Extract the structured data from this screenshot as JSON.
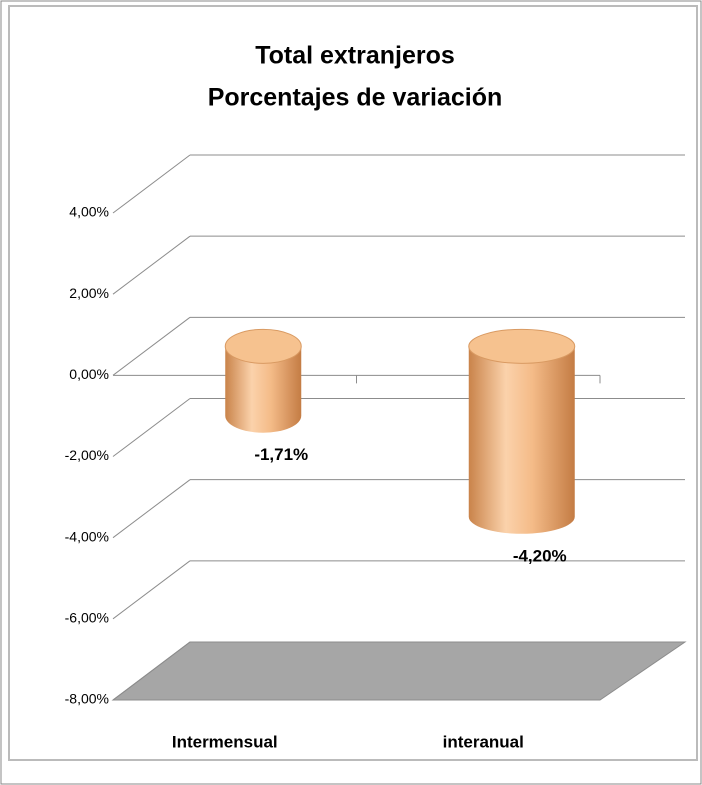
{
  "chart_data": {
    "type": "bar3d",
    "title": [
      "Total extranjeros",
      "Porcentajes de variación"
    ],
    "categories": [
      "Intermensual",
      "interanual"
    ],
    "values": [
      -1.71,
      -4.2
    ],
    "value_labels": [
      "-1,71%",
      "-4,20%"
    ],
    "color": "#f2b27a",
    "ylim": [
      -8,
      4
    ],
    "yticks": [
      {
        "value": -8,
        "label": "-8,00%"
      },
      {
        "value": -6,
        "label": "-6,00%"
      },
      {
        "value": -4,
        "label": "-4,00%"
      },
      {
        "value": -2,
        "label": "-2,00%"
      },
      {
        "value": 0,
        "label": "0,00%"
      },
      {
        "value": 2,
        "label": "2,00%"
      },
      {
        "value": 4,
        "label": "4,00%"
      }
    ],
    "grid": true
  }
}
